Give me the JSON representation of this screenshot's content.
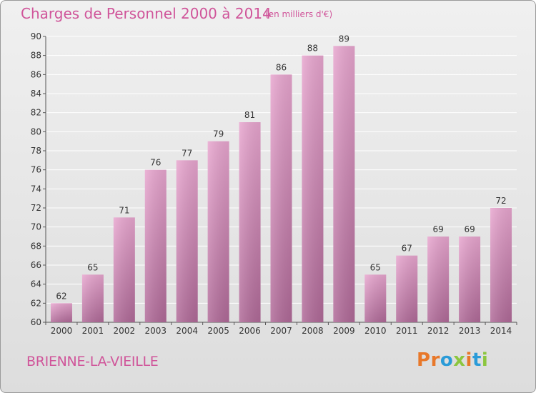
{
  "header": {
    "title": "Charges de Personnel 2000 à 2014",
    "subtitle": "(en milliers d'€)"
  },
  "footer": {
    "town": "BRIENNE-LA-VIEILLE",
    "logo": "Proxiti",
    "logo_colors": [
      "#e8782a",
      "#e8782a",
      "#2a9bd8",
      "#8cc63f",
      "#e8782a",
      "#2a9bd8",
      "#8cc63f"
    ]
  },
  "colors": {
    "title": "#d0559a",
    "bar_top": "#e8a6cf",
    "bar_bottom": "#b06a98",
    "grid": "#ffffff",
    "axis": "#555555",
    "text": "#333333"
  },
  "chart_data": {
    "type": "bar",
    "title": "Charges de Personnel 2000 à 2014",
    "subtitle": "(en milliers d'€)",
    "categories": [
      "2000",
      "2001",
      "2002",
      "2003",
      "2004",
      "2005",
      "2006",
      "2007",
      "2008",
      "2009",
      "2010",
      "2011",
      "2012",
      "2013",
      "2014"
    ],
    "values": [
      62,
      65,
      71,
      76,
      77,
      79,
      81,
      86,
      88,
      89,
      65,
      67,
      69,
      69,
      72
    ],
    "ylim": [
      60,
      90
    ],
    "yticks": [
      60,
      62,
      64,
      66,
      68,
      70,
      72,
      74,
      76,
      78,
      80,
      82,
      84,
      86,
      88,
      90
    ],
    "grid": true,
    "data_labels": true
  }
}
